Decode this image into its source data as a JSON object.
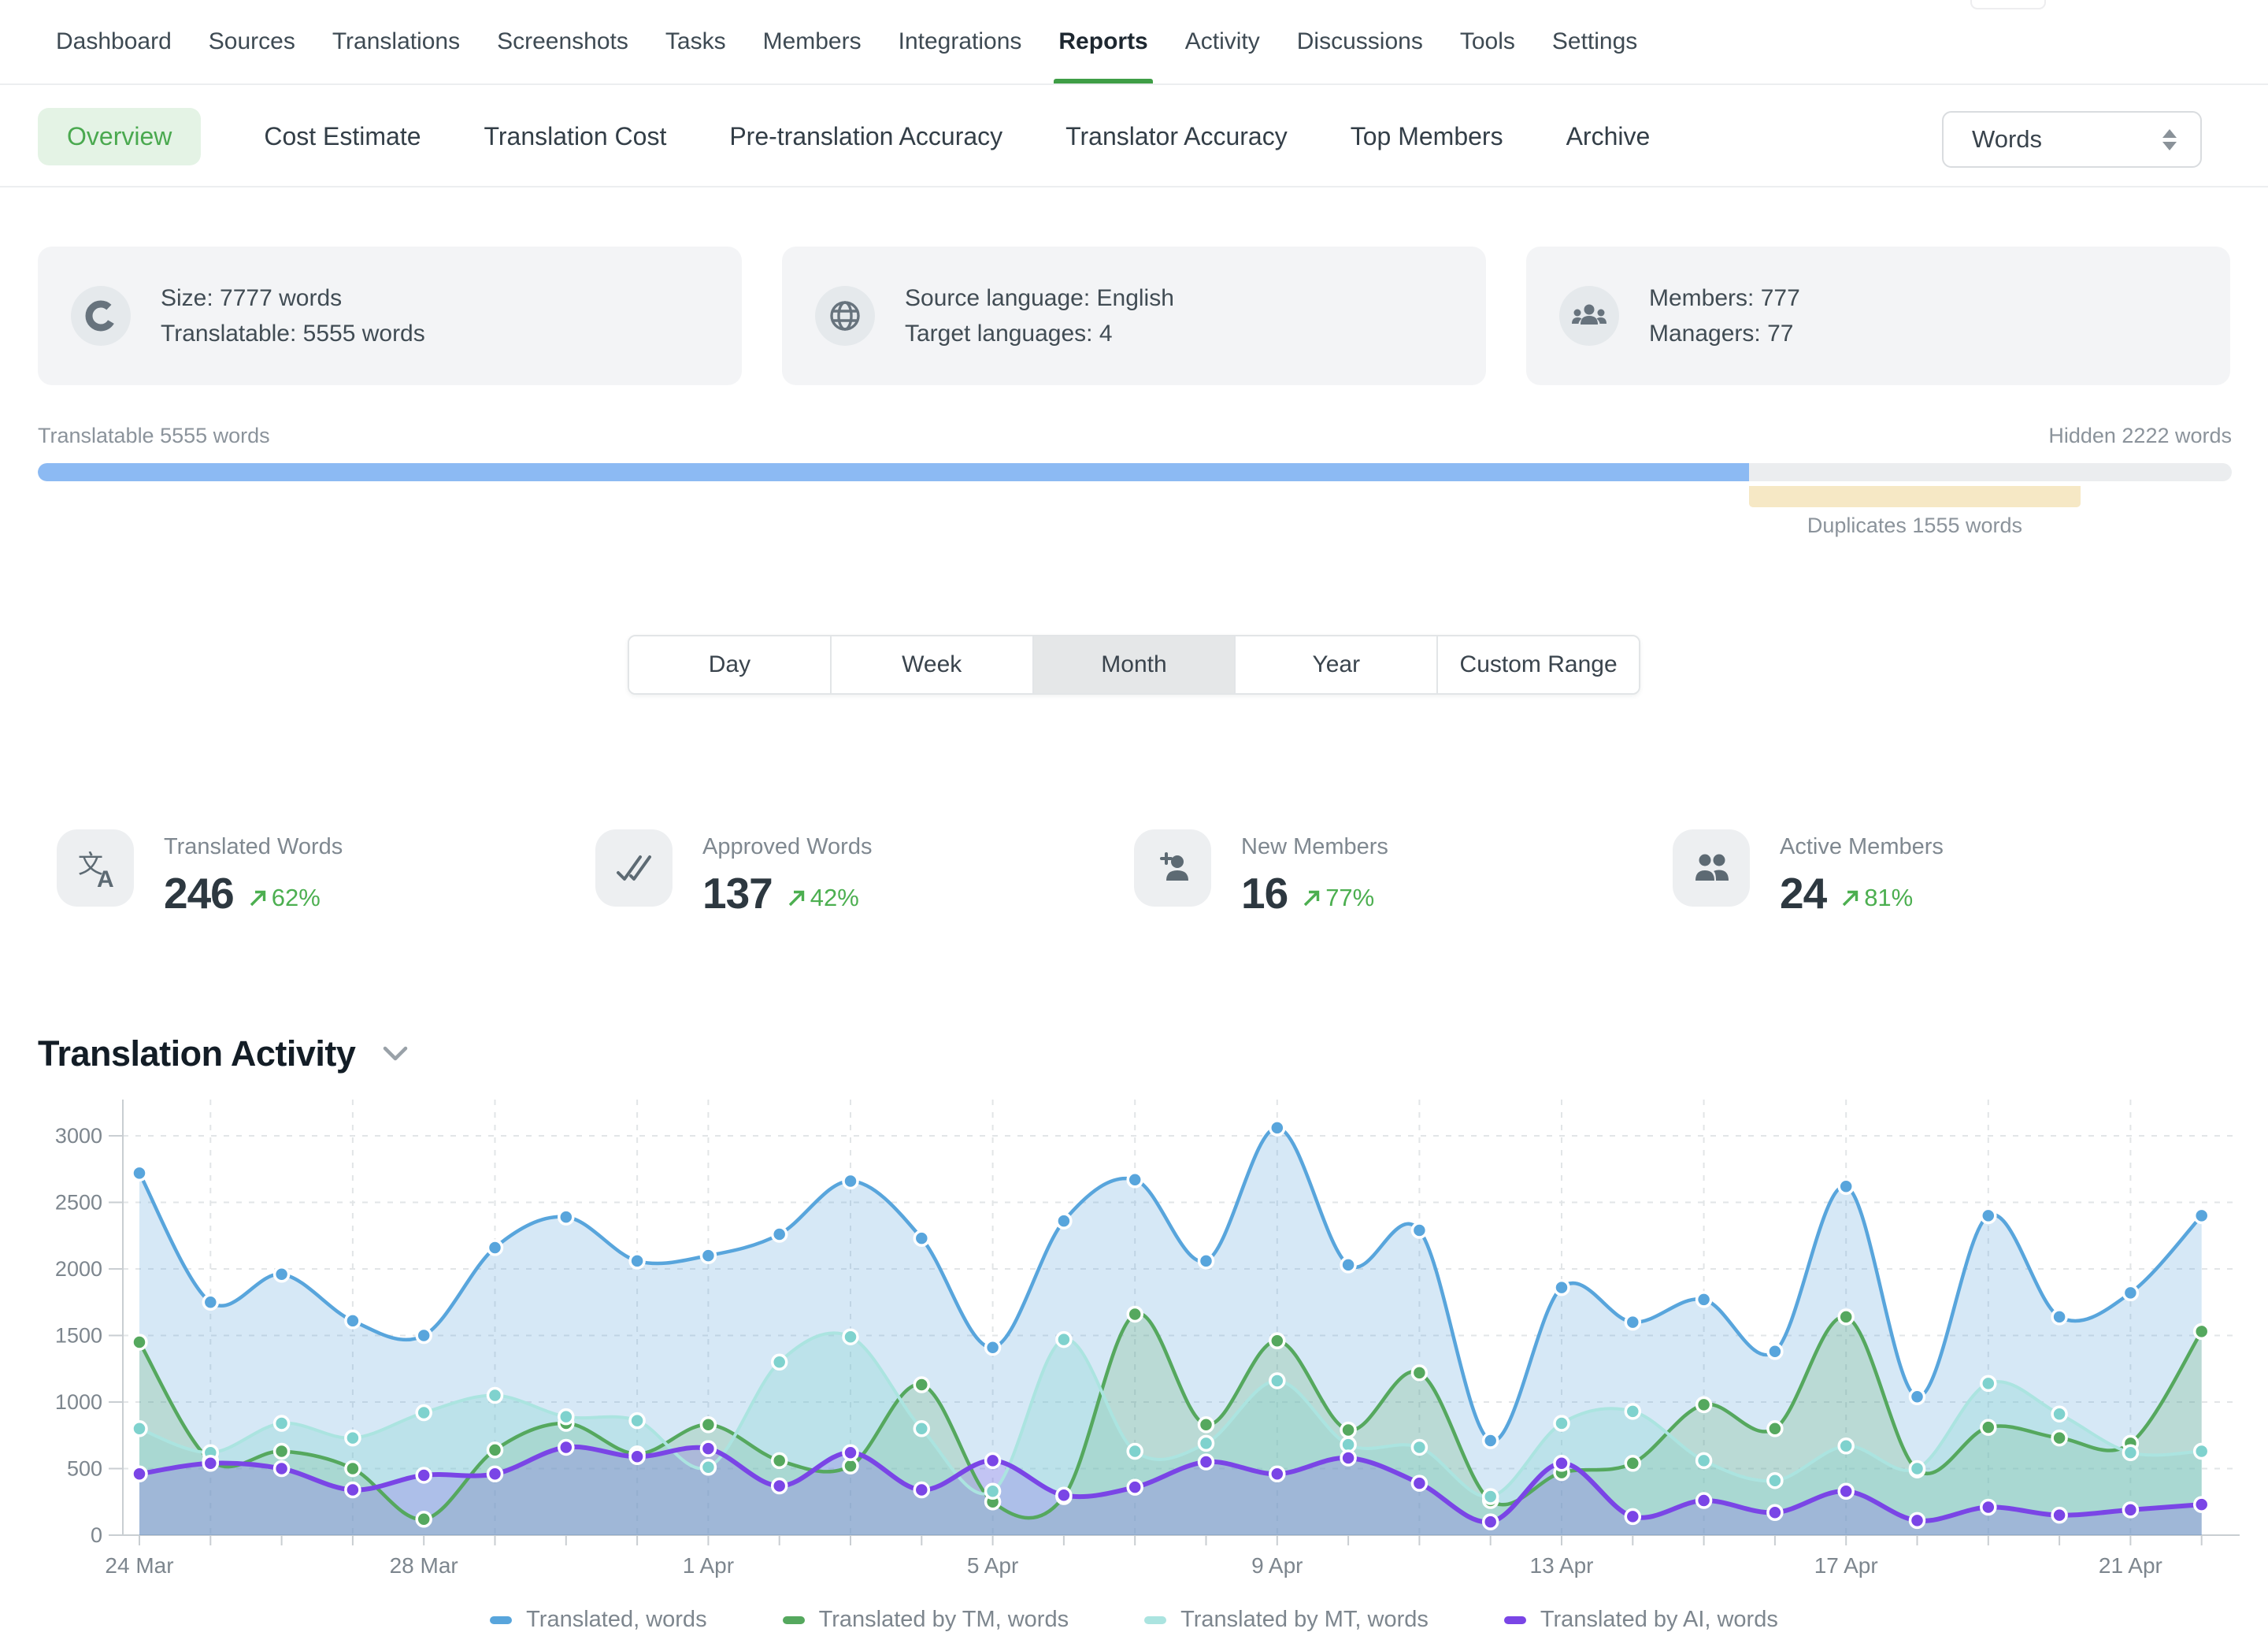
{
  "nav": {
    "items": [
      "Dashboard",
      "Sources",
      "Translations",
      "Screenshots",
      "Tasks",
      "Members",
      "Integrations",
      "Reports",
      "Activity",
      "Discussions",
      "Tools",
      "Settings"
    ],
    "active": "Reports"
  },
  "subnav": {
    "items": [
      "Overview",
      "Cost Estimate",
      "Translation Cost",
      "Pre-translation Accuracy",
      "Translator Accuracy",
      "Top Members",
      "Archive"
    ],
    "active": "Overview",
    "unit_select": {
      "value": "Words"
    }
  },
  "summary_cards": [
    {
      "icon": "donut-icon",
      "line1": "Size: 7777 words",
      "line2": "Translatable: 5555 words"
    },
    {
      "icon": "globe-icon",
      "line1": "Source language: English",
      "line2": "Target languages: 4"
    },
    {
      "icon": "people-group-icon",
      "line1": "Members: 777",
      "line2": "Managers: 77"
    }
  ],
  "progress": {
    "left_label": "Translatable 5555 words",
    "right_label": "Hidden 2222 words",
    "duplicates_label": "Duplicates 1555 words",
    "translatable_pct": 78,
    "duplicates_start_pct": 78,
    "duplicates_width_pct": 15.1,
    "colors": {
      "fill": "#8cbaf3",
      "track": "#ebedef",
      "duplicates": "#f6e8c5"
    }
  },
  "range_tabs": {
    "options": [
      "Day",
      "Week",
      "Month",
      "Year",
      "Custom Range"
    ],
    "selected": "Month"
  },
  "stats": [
    {
      "icon": "translate-icon",
      "label": "Translated Words",
      "value": "246",
      "trend": "62%"
    },
    {
      "icon": "double-check-icon",
      "label": "Approved Words",
      "value": "137",
      "trend": "42%"
    },
    {
      "icon": "person-plus-icon",
      "label": "New Members",
      "value": "16",
      "trend": "77%"
    },
    {
      "icon": "people-icon",
      "label": "Active Members",
      "value": "24",
      "trend": "81%"
    }
  ],
  "section": {
    "title": "Translation Activity"
  },
  "chart_data": {
    "type": "area",
    "title": "Translation Activity",
    "x": [
      "24 Mar",
      "25 Mar",
      "26 Mar",
      "27 Mar",
      "28 Mar",
      "29 Mar",
      "30 Mar",
      "31 Mar",
      "1 Apr",
      "2 Apr",
      "3 Apr",
      "4 Apr",
      "5 Apr",
      "6 Apr",
      "7 Apr",
      "8 Apr",
      "9 Apr",
      "10 Apr",
      "11 Apr",
      "12 Apr",
      "13 Apr",
      "14 Apr",
      "15 Apr",
      "16 Apr",
      "17 Apr",
      "18 Apr",
      "19 Apr",
      "20 Apr",
      "21 Apr",
      "22 Apr"
    ],
    "xlabel_indices": [
      0,
      4,
      8,
      12,
      16,
      20,
      24,
      28
    ],
    "vgrid_indices": [
      1,
      3,
      5,
      7,
      8,
      10,
      12,
      14,
      16,
      18,
      20,
      22,
      24,
      26,
      28
    ],
    "ylim": [
      0,
      3000
    ],
    "yticks": [
      0,
      500,
      1000,
      1500,
      2000,
      2500,
      3000
    ],
    "grid": "dashed",
    "legend_position": "bottom",
    "series": [
      {
        "name": "Translated, words",
        "color": "#58a5dc",
        "fill": "rgba(90,165,220,0.25)",
        "values": [
          2720,
          1750,
          1960,
          1610,
          1500,
          2160,
          2390,
          2060,
          2100,
          2260,
          2660,
          2230,
          1410,
          2360,
          2670,
          2060,
          3060,
          2030,
          2290,
          710,
          1860,
          1600,
          1770,
          1380,
          2620,
          1040,
          2400,
          1640,
          1820,
          2400
        ]
      },
      {
        "name": "Translated by TM, words",
        "color": "#55a85e",
        "fill": "rgba(85,168,94,0.22)",
        "values": [
          1450,
          560,
          630,
          500,
          120,
          640,
          840,
          610,
          830,
          560,
          520,
          1130,
          250,
          290,
          1660,
          830,
          1460,
          790,
          1220,
          260,
          470,
          540,
          980,
          800,
          1640,
          490,
          810,
          730,
          690,
          1530
        ]
      },
      {
        "name": "Translated by MT, words",
        "color": "#abe4e0",
        "dot_color": "#7fd2ce",
        "fill": "rgba(130,212,206,0.30)",
        "values": [
          800,
          620,
          840,
          730,
          920,
          1050,
          890,
          860,
          510,
          1300,
          1490,
          800,
          330,
          1470,
          630,
          690,
          1160,
          680,
          660,
          290,
          840,
          930,
          560,
          410,
          670,
          500,
          1140,
          910,
          620,
          630
        ]
      },
      {
        "name": "Translated by AI, words",
        "color": "#7a45e6",
        "fill": "rgba(122,69,230,0.22)",
        "values": [
          460,
          540,
          500,
          340,
          450,
          460,
          660,
          590,
          650,
          370,
          620,
          340,
          560,
          300,
          360,
          550,
          460,
          580,
          390,
          100,
          540,
          140,
          260,
          170,
          330,
          110,
          210,
          150,
          190,
          230
        ]
      }
    ]
  }
}
